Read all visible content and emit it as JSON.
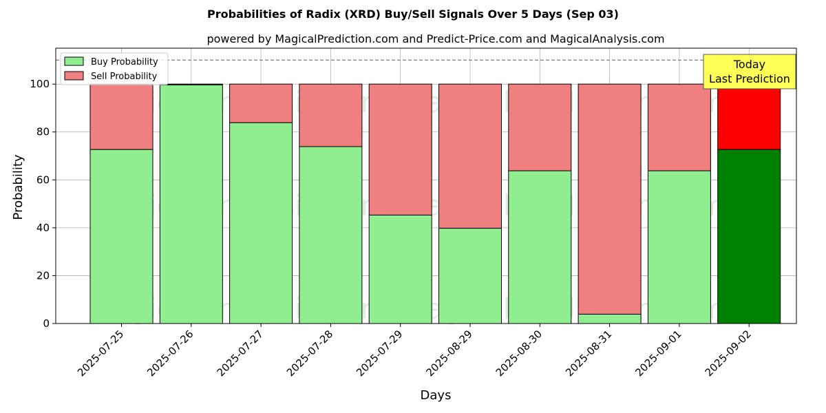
{
  "chart_data": {
    "type": "bar",
    "stacked": true,
    "title": "Probabilities of Radix (XRD) Buy/Sell Signals Over 5 Days (Sep 03)",
    "subtitle": "powered by MagicalPrediction.com and Predict-Price.com and MagicalAnalysis.com",
    "xlabel": "Days",
    "ylabel": "Probability",
    "ylim": [
      0,
      115
    ],
    "yticks": [
      0,
      20,
      40,
      60,
      80,
      100
    ],
    "grid": true,
    "categories": [
      "2025-07-25",
      "2025-07-26",
      "2025-07-27",
      "2025-07-28",
      "2025-07-29",
      "2025-08-29",
      "2025-08-30",
      "2025-08-31",
      "2025-09-01",
      "2025-09-02"
    ],
    "series": [
      {
        "name": "Buy Probability",
        "color": "#90ee90",
        "values": [
          72.7,
          99.7,
          83.9,
          73.9,
          45.3,
          39.8,
          63.8,
          3.9,
          63.8,
          72.7
        ]
      },
      {
        "name": "Sell Probability",
        "color": "#f08080",
        "values": [
          27.3,
          0.3,
          16.1,
          26.1,
          54.7,
          60.2,
          36.2,
          96.1,
          36.2,
          27.3
        ]
      }
    ],
    "highlight": {
      "index": 9,
      "buy_color": "#008000",
      "sell_color": "#ff0000"
    },
    "reference_line": {
      "y": 110,
      "style": "dashed",
      "color": "#808080"
    },
    "annotation": {
      "lines": [
        "Today",
        "Last Prediction"
      ],
      "bg": "#ffff55"
    },
    "legend": {
      "position": "top-left",
      "entries": [
        "Buy Probability",
        "Sell Probability"
      ]
    },
    "watermarks": [
      "MagicalAnalysis.com",
      "MagicalPrediction.com",
      "MagicalAnalysis.com",
      "MagicalPrediction.com",
      "MagicalAnalysis.com",
      "MagicalPrediction.com"
    ]
  }
}
